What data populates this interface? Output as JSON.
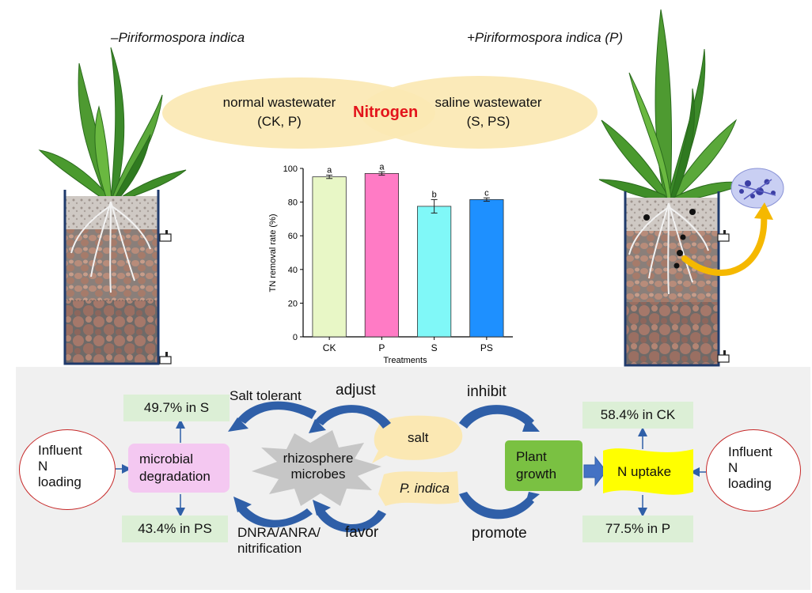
{
  "titles": {
    "left": "–Piriformospora indica",
    "right": "+Piriformospora indica (P)"
  },
  "ellipses": {
    "left_line1": "normal wastewater",
    "left_line2": "(CK, P)",
    "center": "Nitrogen",
    "right_line1": "saline wastewater",
    "right_line2": "(S, PS)"
  },
  "chart_data": {
    "type": "bar",
    "categories": [
      "CK",
      "P",
      "S",
      "PS"
    ],
    "values": [
      95,
      97,
      77.5,
      81.5
    ],
    "errors": [
      1,
      1,
      4,
      1
    ],
    "sig_letters": [
      "a",
      "a",
      "b",
      "c"
    ],
    "colors": [
      "#e8f7c6",
      "#ff7bc5",
      "#80f8f8",
      "#1e90ff"
    ],
    "xlabel": "Treatments",
    "ylabel": "TN removal rate (%)",
    "ylim": [
      0,
      100
    ],
    "yticks": [
      0,
      20,
      40,
      60,
      80,
      100
    ]
  },
  "flow": {
    "influent_left": [
      "Influent",
      "N",
      "loading"
    ],
    "influent_right": [
      "Influent",
      "N",
      "loading"
    ],
    "microbial": [
      "microbial",
      "degradation"
    ],
    "rhizo": [
      "rhizosphere",
      "microbes"
    ],
    "salt": "salt",
    "pindica": "P. indica",
    "plant": [
      "Plant",
      "growth"
    ],
    "uptake": "N uptake",
    "s_pct": "49.7% in S",
    "ps_pct": "43.4% in PS",
    "ck_pct": "58.4% in CK",
    "p_pct": "77.5% in P",
    "salt_tolerant": "Salt tolerant",
    "adjust": "adjust",
    "inhibit": "inhibit",
    "favor": "favor",
    "promote": "promote",
    "dnra": [
      "DNRA/ANRA/",
      "nitrification"
    ]
  },
  "colors": {
    "nitrogen": "#e3141b",
    "arrow_blue": "#2f5fa8",
    "circle_red": "#c62828",
    "ellipse": "#fbe8b3",
    "green_box": "#dcefd6",
    "plant_green": "#7ac142",
    "pink_box": "#f4c8f1",
    "uptake_yellow": "#ffff00"
  }
}
